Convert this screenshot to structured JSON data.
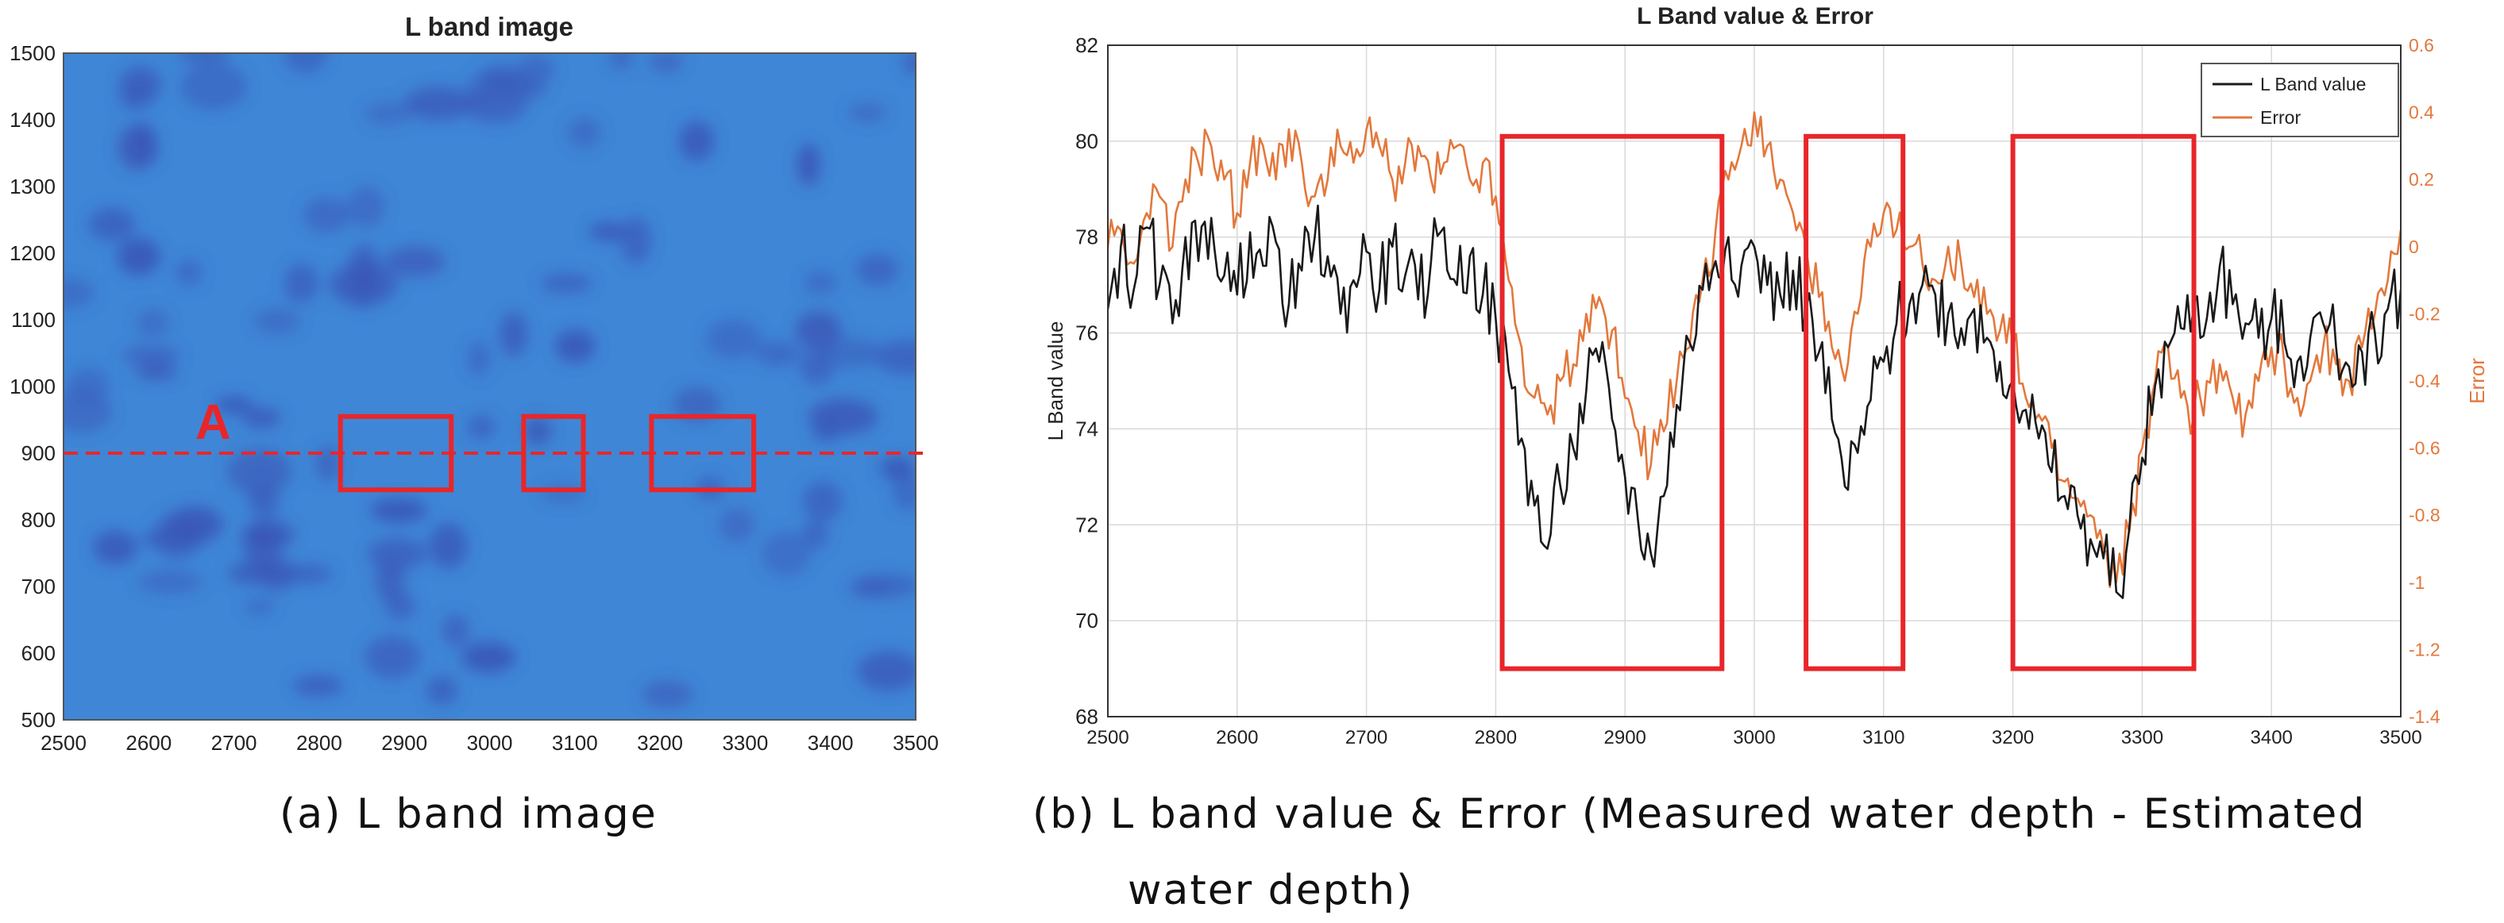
{
  "panels": [
    {
      "id": "a",
      "title": "L band image",
      "caption": "(a)  L  band  image",
      "marker_label": "A",
      "profile_line_y": 900,
      "highlight_x_ranges": [
        [
          2825,
          2955
        ],
        [
          3040,
          3110
        ],
        [
          3190,
          3310
        ]
      ],
      "highlight_y_range": [
        845,
        955
      ]
    },
    {
      "id": "b",
      "title": "L Band value & Error",
      "caption_line1": "(b)  L  band  value  &  Error  (Measured  water  depth  -  Estimated",
      "caption_line2": "water  depth)",
      "highlight_x_ranges": [
        [
          2805,
          2975
        ],
        [
          3040,
          3115
        ],
        [
          3200,
          3340
        ]
      ]
    }
  ],
  "colors": {
    "image_base": "#3f86d6",
    "image_spot": "#3a56b6",
    "highlight": "#e8262a",
    "lband_line": "#1a1a1a",
    "error_line": "#e3783c",
    "error_axis": "#e3783c"
  },
  "chart_data": [
    {
      "type": "heatmap",
      "title": "L band image",
      "xlabel": "",
      "ylabel": "",
      "xlim": [
        2500,
        3500
      ],
      "ylim": [
        500,
        1500
      ],
      "xticks": [
        2500,
        2600,
        2700,
        2800,
        2900,
        3000,
        3100,
        3200,
        3300,
        3400,
        3500
      ],
      "yticks": [
        500,
        600,
        700,
        800,
        900,
        1000,
        1100,
        1200,
        1300,
        1400,
        1500
      ],
      "grid": false
    },
    {
      "type": "line",
      "title": "L Band value & Error",
      "xlabel": "",
      "ylabel": "L Band value",
      "y2label": "Error",
      "xlim": [
        2500,
        3500
      ],
      "ylim": [
        68,
        82
      ],
      "y2lim": [
        -1.4,
        0.6
      ],
      "xticks": [
        2500,
        2600,
        2700,
        2800,
        2900,
        3000,
        3100,
        3200,
        3300,
        3400,
        3500
      ],
      "yticks": [
        68,
        70,
        72,
        74,
        76,
        78,
        80,
        82
      ],
      "y2ticks": [
        -1.4,
        -1.2,
        -1,
        -0.8,
        -0.6,
        -0.4,
        -0.2,
        0,
        0.2,
        0.4,
        0.6
      ],
      "legend_position": "top-right",
      "grid": true,
      "series": [
        {
          "name": "L Band value",
          "axis": "left",
          "x": [
            2500,
            2510,
            2520,
            2530,
            2540,
            2550,
            2560,
            2570,
            2580,
            2590,
            2600,
            2610,
            2620,
            2630,
            2640,
            2650,
            2660,
            2670,
            2680,
            2690,
            2700,
            2710,
            2720,
            2730,
            2740,
            2750,
            2760,
            2770,
            2780,
            2790,
            2800,
            2810,
            2820,
            2830,
            2840,
            2850,
            2860,
            2870,
            2880,
            2890,
            2900,
            2910,
            2920,
            2930,
            2940,
            2950,
            2960,
            2970,
            2980,
            2990,
            3000,
            3010,
            3020,
            3030,
            3040,
            3050,
            3060,
            3070,
            3080,
            3090,
            3100,
            3110,
            3120,
            3130,
            3140,
            3150,
            3160,
            3170,
            3180,
            3190,
            3200,
            3210,
            3220,
            3230,
            3240,
            3250,
            3260,
            3270,
            3280,
            3290,
            3300,
            3310,
            3320,
            3330,
            3340,
            3350,
            3360,
            3370,
            3380,
            3390,
            3400,
            3410,
            3420,
            3430,
            3440,
            3450,
            3460,
            3470,
            3480,
            3490,
            3500
          ],
          "y": [
            76.5,
            77.8,
            76.9,
            78.2,
            77.0,
            76.2,
            78.0,
            77.5,
            78.4,
            77.2,
            76.8,
            78.1,
            77.4,
            77.9,
            76.6,
            77.3,
            78.0,
            77.6,
            76.4,
            77.1,
            77.7,
            76.9,
            77.8,
            77.2,
            76.7,
            77.5,
            78.2,
            77.0,
            77.6,
            76.8,
            76.3,
            75.2,
            73.8,
            72.4,
            71.5,
            72.8,
            73.6,
            74.8,
            75.4,
            74.2,
            73.0,
            72.1,
            71.4,
            72.6,
            74.5,
            75.8,
            76.9,
            77.5,
            78.0,
            77.4,
            77.8,
            77.0,
            76.8,
            77.3,
            76.5,
            75.6,
            74.2,
            72.8,
            73.5,
            74.6,
            75.4,
            76.2,
            76.6,
            77.0,
            76.8,
            76.4,
            76.1,
            76.5,
            75.9,
            75.4,
            75.0,
            74.4,
            73.8,
            73.1,
            72.6,
            72.2,
            71.7,
            71.3,
            70.6,
            71.9,
            73.4,
            74.9,
            75.7,
            76.1,
            76.6,
            76.3,
            77.4,
            76.6,
            76.2,
            75.9,
            76.3,
            75.8,
            75.4,
            75.9,
            76.2,
            75.7,
            75.3,
            75.6,
            76.0,
            76.5,
            76.9
          ]
        },
        {
          "name": "Error",
          "axis": "right",
          "x": [
            2500,
            2510,
            2520,
            2530,
            2540,
            2550,
            2560,
            2570,
            2580,
            2590,
            2600,
            2610,
            2620,
            2630,
            2640,
            2650,
            2660,
            2670,
            2680,
            2690,
            2700,
            2710,
            2720,
            2730,
            2740,
            2750,
            2760,
            2770,
            2780,
            2790,
            2800,
            2810,
            2820,
            2830,
            2840,
            2850,
            2860,
            2870,
            2880,
            2890,
            2900,
            2910,
            2920,
            2930,
            2940,
            2950,
            2960,
            2970,
            2980,
            2990,
            3000,
            3010,
            3020,
            3030,
            3040,
            3050,
            3060,
            3070,
            3080,
            3090,
            3100,
            3110,
            3120,
            3130,
            3140,
            3150,
            3160,
            3170,
            3180,
            3190,
            3200,
            3210,
            3220,
            3230,
            3240,
            3250,
            3260,
            3270,
            3280,
            3290,
            3300,
            3310,
            3320,
            3330,
            3340,
            3350,
            3360,
            3370,
            3380,
            3390,
            3400,
            3410,
            3420,
            3430,
            3440,
            3450,
            3460,
            3470,
            3480,
            3490,
            3500
          ],
          "y": [
            0.0,
            0.05,
            -0.05,
            0.1,
            0.15,
            0.0,
            0.2,
            0.25,
            0.3,
            0.2,
            0.1,
            0.25,
            0.3,
            0.2,
            0.35,
            0.25,
            0.15,
            0.2,
            0.3,
            0.25,
            0.35,
            0.3,
            0.2,
            0.25,
            0.3,
            0.2,
            0.25,
            0.3,
            0.2,
            0.25,
            0.15,
            -0.1,
            -0.3,
            -0.45,
            -0.5,
            -0.4,
            -0.35,
            -0.2,
            -0.15,
            -0.25,
            -0.45,
            -0.55,
            -0.65,
            -0.55,
            -0.4,
            -0.3,
            -0.1,
            0.05,
            0.2,
            0.3,
            0.4,
            0.3,
            0.2,
            0.1,
            0.0,
            -0.15,
            -0.3,
            -0.4,
            -0.2,
            0.0,
            0.1,
            0.05,
            0.0,
            -0.05,
            -0.1,
            0.0,
            -0.05,
            -0.15,
            -0.2,
            -0.25,
            -0.3,
            -0.45,
            -0.5,
            -0.6,
            -0.7,
            -0.75,
            -0.8,
            -0.9,
            -1.0,
            -0.85,
            -0.6,
            -0.4,
            -0.3,
            -0.45,
            -0.5,
            -0.4,
            -0.35,
            -0.45,
            -0.5,
            -0.4,
            -0.3,
            -0.35,
            -0.45,
            -0.4,
            -0.3,
            -0.35,
            -0.4,
            -0.3,
            -0.2,
            -0.1,
            0.05
          ]
        }
      ]
    }
  ]
}
